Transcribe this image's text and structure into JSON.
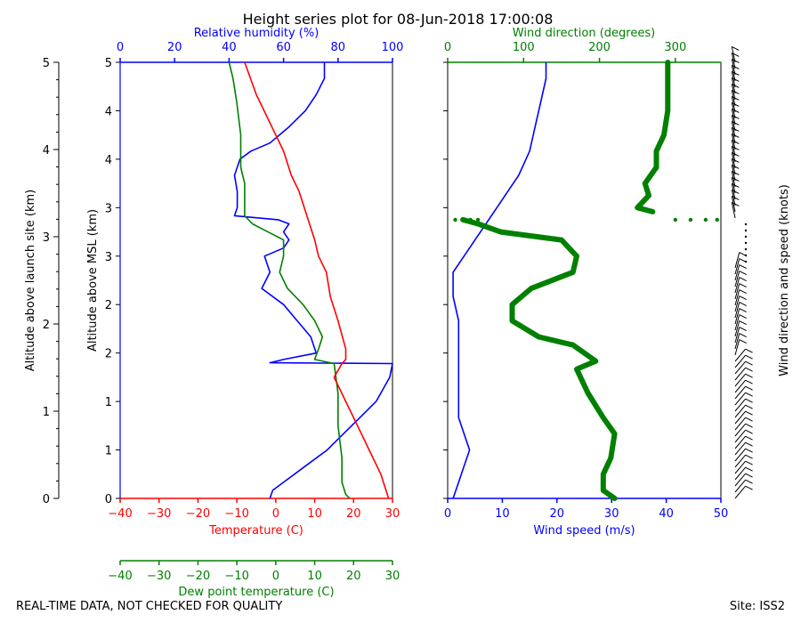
{
  "chart_data": {
    "type": "line",
    "title": "Height series plot for 08-Jun-2018 17:00:08",
    "left_panel": {
      "ylabel_outer": "Altitude above launch site (km)",
      "ylabel_inner": "Altitude above MSL (km)",
      "yticks_outer": [
        "0",
        "1",
        "2",
        "3",
        "4",
        "5"
      ],
      "yticks_inner": [
        "0",
        "1",
        "1",
        "2",
        "2",
        "3",
        "3",
        "4",
        "4",
        "5"
      ],
      "ylim_msl": [
        0,
        5.4
      ],
      "temperature": {
        "name": "Temperature (C)",
        "color": "#ff0000",
        "xlim": [
          -40,
          30
        ],
        "ticks": [
          "−40",
          "−30",
          "−20",
          "−10",
          "0",
          "10",
          "20",
          "30"
        ],
        "points": [
          [
            29,
            0
          ],
          [
            27,
            0.3
          ],
          [
            24,
            0.6
          ],
          [
            21,
            0.9
          ],
          [
            18,
            1.2
          ],
          [
            15,
            1.5
          ],
          [
            17,
            1.67
          ],
          [
            18,
            1.72
          ],
          [
            18,
            1.85
          ],
          [
            16,
            2.2
          ],
          [
            14,
            2.5
          ],
          [
            13,
            2.8
          ],
          [
            11,
            3.0
          ],
          [
            10,
            3.2
          ],
          [
            8,
            3.5
          ],
          [
            6,
            3.8
          ],
          [
            4,
            4.0
          ],
          [
            2,
            4.3
          ],
          [
            0,
            4.5
          ],
          [
            -3,
            4.8
          ],
          [
            -5,
            5.0
          ],
          [
            -8,
            5.4
          ]
        ]
      },
      "dew_point": {
        "name": "Dew point temperature (C)",
        "color": "#008000",
        "xlim": [
          -40,
          30
        ],
        "ticks": [
          "−40",
          "−30",
          "−20",
          "−10",
          "0",
          "10",
          "20",
          "30"
        ],
        "points": [
          [
            19,
            0
          ],
          [
            18,
            0.05
          ],
          [
            17,
            0.2
          ],
          [
            17,
            0.5
          ],
          [
            16,
            0.9
          ],
          [
            16,
            1.3
          ],
          [
            15,
            1.67
          ],
          [
            10,
            1.72
          ],
          [
            11,
            1.85
          ],
          [
            12,
            2.0
          ],
          [
            10,
            2.2
          ],
          [
            7,
            2.4
          ],
          [
            3,
            2.6
          ],
          [
            1,
            2.8
          ],
          [
            2,
            3.0
          ],
          [
            2,
            3.2
          ],
          [
            -2,
            3.3
          ],
          [
            -6,
            3.4
          ],
          [
            -8,
            3.5
          ],
          [
            -8,
            3.9
          ],
          [
            -9,
            4.1
          ],
          [
            -9,
            4.5
          ],
          [
            -10,
            4.9
          ],
          [
            -11,
            5.2
          ],
          [
            -12,
            5.4
          ]
        ]
      },
      "relative_humidity": {
        "name": "Relative humidity (%)",
        "color": "#0000ff",
        "xlim": [
          0,
          100
        ],
        "ticks": [
          "0",
          "20",
          "40",
          "60",
          "80",
          "100"
        ],
        "points": [
          [
            55,
            0
          ],
          [
            56,
            0.1
          ],
          [
            60,
            0.2
          ],
          [
            68,
            0.4
          ],
          [
            76,
            0.6
          ],
          [
            82,
            0.8
          ],
          [
            88,
            1.0
          ],
          [
            94,
            1.2
          ],
          [
            99,
            1.5
          ],
          [
            100,
            1.67
          ],
          [
            55,
            1.68
          ],
          [
            60,
            1.72
          ],
          [
            72,
            1.8
          ],
          [
            70,
            2.0
          ],
          [
            65,
            2.2
          ],
          [
            60,
            2.4
          ],
          [
            52,
            2.6
          ],
          [
            55,
            2.8
          ],
          [
            53,
            3.0
          ],
          [
            60,
            3.1
          ],
          [
            62,
            3.2
          ],
          [
            60,
            3.3
          ],
          [
            62,
            3.4
          ],
          [
            58,
            3.45
          ],
          [
            42,
            3.5
          ],
          [
            43,
            3.6
          ],
          [
            43,
            3.8
          ],
          [
            42,
            4.0
          ],
          [
            44,
            4.2
          ],
          [
            48,
            4.3
          ],
          [
            55,
            4.4
          ],
          [
            62,
            4.6
          ],
          [
            68,
            4.8
          ],
          [
            72,
            5.0
          ],
          [
            75,
            5.2
          ],
          [
            75,
            5.4
          ]
        ]
      }
    },
    "right_panel": {
      "wind_speed": {
        "name": "Wind speed (m/s)",
        "color": "#0000ff",
        "xlim": [
          0,
          50
        ],
        "ticks": [
          "0",
          "10",
          "20",
          "30",
          "40",
          "50"
        ],
        "points": [
          [
            1,
            0
          ],
          [
            2,
            0.2
          ],
          [
            3,
            0.4
          ],
          [
            4,
            0.6
          ],
          [
            3,
            0.8
          ],
          [
            2,
            1.0
          ],
          [
            2,
            1.3
          ],
          [
            2,
            1.6
          ],
          [
            2,
            1.9
          ],
          [
            2,
            2.2
          ],
          [
            1,
            2.5
          ],
          [
            1,
            2.8
          ],
          [
            3,
            3.0
          ],
          [
            5,
            3.2
          ],
          [
            7,
            3.4
          ],
          [
            9,
            3.6
          ],
          [
            11,
            3.8
          ],
          [
            13,
            4.0
          ],
          [
            15,
            4.3
          ],
          [
            16,
            4.6
          ],
          [
            17,
            4.9
          ],
          [
            18,
            5.2
          ],
          [
            18,
            5.4
          ]
        ]
      },
      "wind_direction": {
        "name": "Wind direction (degrees)",
        "color": "#008000",
        "xlim": [
          0,
          360
        ],
        "ticks": [
          "0",
          "100",
          "200",
          "300"
        ],
        "points": [
          [
            220,
            0
          ],
          [
            205,
            0.1
          ],
          [
            205,
            0.3
          ],
          [
            215,
            0.5
          ],
          [
            220,
            0.8
          ],
          [
            205,
            1.0
          ],
          [
            185,
            1.3
          ],
          [
            170,
            1.6
          ],
          [
            195,
            1.7
          ],
          [
            165,
            1.9
          ],
          [
            120,
            2.0
          ],
          [
            85,
            2.2
          ],
          [
            85,
            2.4
          ],
          [
            110,
            2.6
          ],
          [
            165,
            2.8
          ],
          [
            170,
            3.0
          ],
          [
            150,
            3.2
          ],
          [
            70,
            3.3
          ],
          [
            40,
            3.4
          ],
          [
            20,
            3.45
          ],
          [
            5,
            3.5
          ],
          [
            270,
            3.55
          ],
          [
            250,
            3.6
          ],
          [
            265,
            3.75
          ],
          [
            260,
            3.9
          ],
          [
            275,
            4.1
          ],
          [
            275,
            4.3
          ],
          [
            285,
            4.5
          ],
          [
            290,
            4.8
          ],
          [
            290,
            5.0
          ],
          [
            290,
            5.4
          ]
        ]
      },
      "barb_label": "Wind direction and speed (knots)"
    }
  },
  "footer": {
    "left": "REAL-TIME DATA, NOT CHECKED FOR QUALITY",
    "right": "Site: ISS2"
  }
}
